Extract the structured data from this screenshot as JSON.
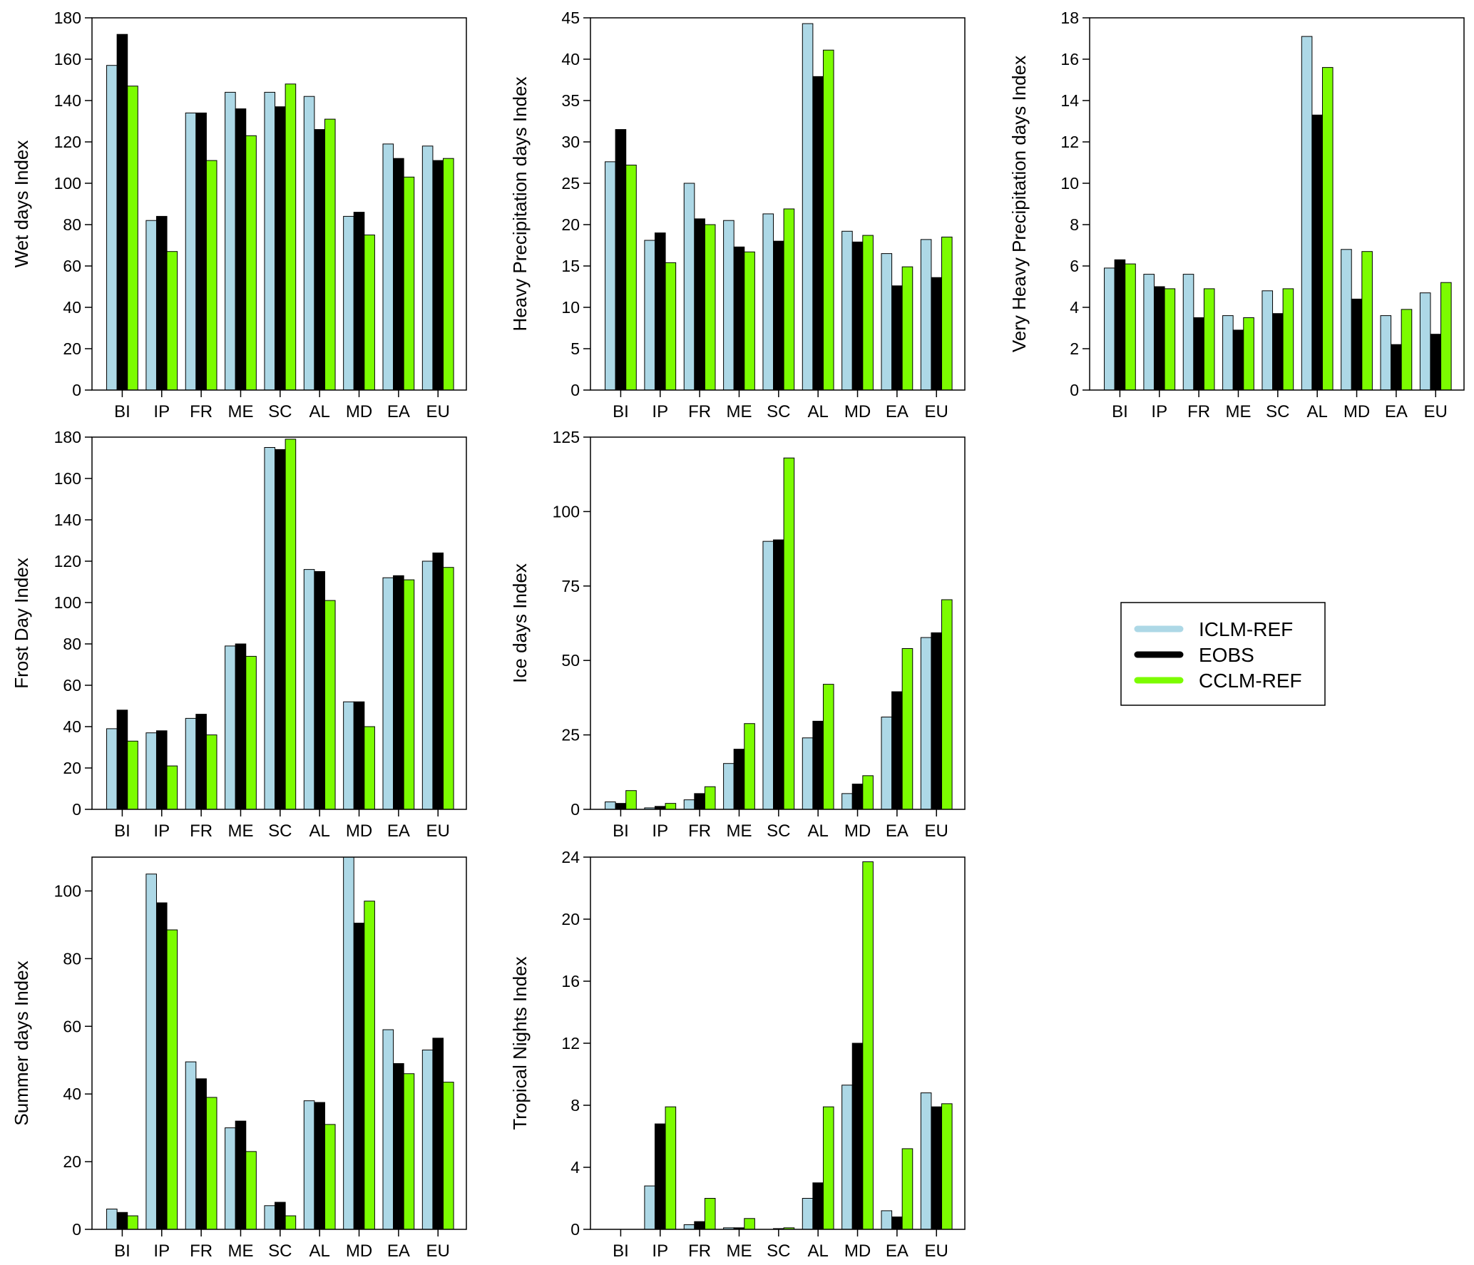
{
  "colors": {
    "ICLM-REF": "#add8e6",
    "EOBS": "#000000",
    "CCLM-REF": "#7cfc00"
  },
  "legend": {
    "placement": "middle-right",
    "entries": [
      {
        "label": "ICLM-REF",
        "color": "#add8e6"
      },
      {
        "label": "EOBS",
        "color": "#000000"
      },
      {
        "label": "CCLM-REF",
        "color": "#7cfc00"
      }
    ]
  },
  "chart_data": [
    {
      "type": "bar",
      "ylabel": "Wet days Index",
      "ylim": [
        0,
        180
      ],
      "yticks": [
        0,
        20,
        40,
        60,
        80,
        100,
        120,
        140,
        160,
        180
      ],
      "categories": [
        "BI",
        "IP",
        "FR",
        "ME",
        "SC",
        "AL",
        "MD",
        "EA",
        "EU"
      ],
      "series": [
        {
          "name": "ICLM-REF",
          "values": [
            157,
            82,
            134,
            144,
            144,
            142,
            84,
            119,
            118
          ]
        },
        {
          "name": "EOBS",
          "values": [
            172,
            84,
            134,
            136,
            137,
            126,
            86,
            112,
            111
          ]
        },
        {
          "name": "CCLM-REF",
          "values": [
            147,
            67,
            111,
            123,
            148,
            131,
            75,
            103,
            112
          ]
        }
      ]
    },
    {
      "type": "bar",
      "ylabel": "Heavy Precipitation days Index",
      "ylim": [
        0,
        45
      ],
      "yticks": [
        0,
        5,
        10,
        15,
        20,
        25,
        30,
        35,
        40,
        45
      ],
      "categories": [
        "BI",
        "IP",
        "FR",
        "ME",
        "SC",
        "AL",
        "MD",
        "EA",
        "EU"
      ],
      "series": [
        {
          "name": "ICLM-REF",
          "values": [
            27.6,
            18.1,
            25,
            20.5,
            21.3,
            44.3,
            19.2,
            16.5,
            18.2
          ]
        },
        {
          "name": "EOBS",
          "values": [
            31.5,
            19,
            20.7,
            17.3,
            18,
            37.9,
            17.9,
            12.6,
            13.6
          ]
        },
        {
          "name": "CCLM-REF",
          "values": [
            27.2,
            15.4,
            20,
            16.7,
            21.9,
            41.1,
            18.7,
            14.9,
            18.5
          ]
        }
      ]
    },
    {
      "type": "bar",
      "ylabel": "Very Heavy Precipitation days Index",
      "ylim": [
        0,
        18
      ],
      "yticks": [
        0,
        2,
        4,
        6,
        8,
        10,
        12,
        14,
        16,
        18
      ],
      "categories": [
        "BI",
        "IP",
        "FR",
        "ME",
        "SC",
        "AL",
        "MD",
        "EA",
        "EU"
      ],
      "series": [
        {
          "name": "ICLM-REF",
          "values": [
            5.9,
            5.6,
            5.6,
            3.6,
            4.8,
            17.1,
            6.8,
            3.6,
            4.7
          ]
        },
        {
          "name": "EOBS",
          "values": [
            6.3,
            5.0,
            3.5,
            2.9,
            3.7,
            13.3,
            4.4,
            2.2,
            2.7
          ]
        },
        {
          "name": "CCLM-REF",
          "values": [
            6.1,
            4.9,
            4.9,
            3.5,
            4.9,
            15.6,
            6.7,
            3.9,
            5.2
          ]
        }
      ]
    },
    {
      "type": "bar",
      "ylabel": "Frost Day Index",
      "ylim": [
        0,
        180
      ],
      "yticks": [
        0,
        20,
        40,
        60,
        80,
        100,
        120,
        140,
        160,
        180
      ],
      "categories": [
        "BI",
        "IP",
        "FR",
        "ME",
        "SC",
        "AL",
        "MD",
        "EA",
        "EU"
      ],
      "series": [
        {
          "name": "ICLM-REF",
          "values": [
            39,
            37,
            44,
            79,
            175,
            116,
            52,
            112,
            120
          ]
        },
        {
          "name": "EOBS",
          "values": [
            48,
            38,
            46,
            80,
            174,
            115,
            52,
            113,
            124
          ]
        },
        {
          "name": "CCLM-REF",
          "values": [
            33,
            21,
            36,
            74,
            179,
            101,
            40,
            111,
            117
          ]
        }
      ]
    },
    {
      "type": "bar",
      "ylabel": "Ice days Index",
      "ylim": [
        0,
        125
      ],
      "yticks": [
        0,
        25,
        50,
        75,
        100,
        125
      ],
      "categories": [
        "BI",
        "IP",
        "FR",
        "ME",
        "SC",
        "AL",
        "MD",
        "EA",
        "EU"
      ],
      "series": [
        {
          "name": "ICLM-REF",
          "values": [
            2.5,
            0.5,
            3.2,
            15.4,
            90,
            24,
            5.3,
            31,
            57.7
          ]
        },
        {
          "name": "EOBS",
          "values": [
            2,
            1,
            5.3,
            20.2,
            90.5,
            29.6,
            8.5,
            39.5,
            59.3
          ]
        },
        {
          "name": "CCLM-REF",
          "values": [
            6.3,
            2,
            7.6,
            28.8,
            118,
            42,
            11.3,
            54,
            70.4
          ]
        }
      ]
    },
    {
      "type": "bar",
      "ylabel": "Summer days Index",
      "ylim": [
        0,
        110
      ],
      "yticks": [
        0,
        20,
        40,
        60,
        80,
        100
      ],
      "categories": [
        "BI",
        "IP",
        "FR",
        "ME",
        "SC",
        "AL",
        "MD",
        "EA",
        "EU"
      ],
      "series": [
        {
          "name": "ICLM-REF",
          "values": [
            6,
            105,
            49.5,
            30,
            7,
            38,
            110,
            59,
            53
          ]
        },
        {
          "name": "EOBS",
          "values": [
            5,
            96.5,
            44.5,
            32,
            8,
            37.5,
            90.5,
            49,
            56.5
          ]
        },
        {
          "name": "CCLM-REF",
          "values": [
            4,
            88.5,
            39,
            23,
            4,
            31,
            97,
            46,
            43.5
          ]
        }
      ]
    },
    {
      "type": "bar",
      "ylabel": "Tropical Nights Index",
      "ylim": [
        0,
        24
      ],
      "yticks": [
        0,
        4,
        8,
        12,
        16,
        20,
        24
      ],
      "categories": [
        "BI",
        "IP",
        "FR",
        "ME",
        "SC",
        "AL",
        "MD",
        "EA",
        "EU"
      ],
      "series": [
        {
          "name": "ICLM-REF",
          "values": [
            0,
            2.8,
            0.3,
            0.1,
            0,
            2,
            9.3,
            1.2,
            8.8
          ]
        },
        {
          "name": "EOBS",
          "values": [
            0,
            6.8,
            0.5,
            0.1,
            0.05,
            3,
            12,
            0.8,
            7.9
          ]
        },
        {
          "name": "CCLM-REF",
          "values": [
            0,
            7.9,
            2.0,
            0.7,
            0.1,
            7.9,
            23.7,
            5.2,
            8.1
          ]
        }
      ]
    }
  ]
}
